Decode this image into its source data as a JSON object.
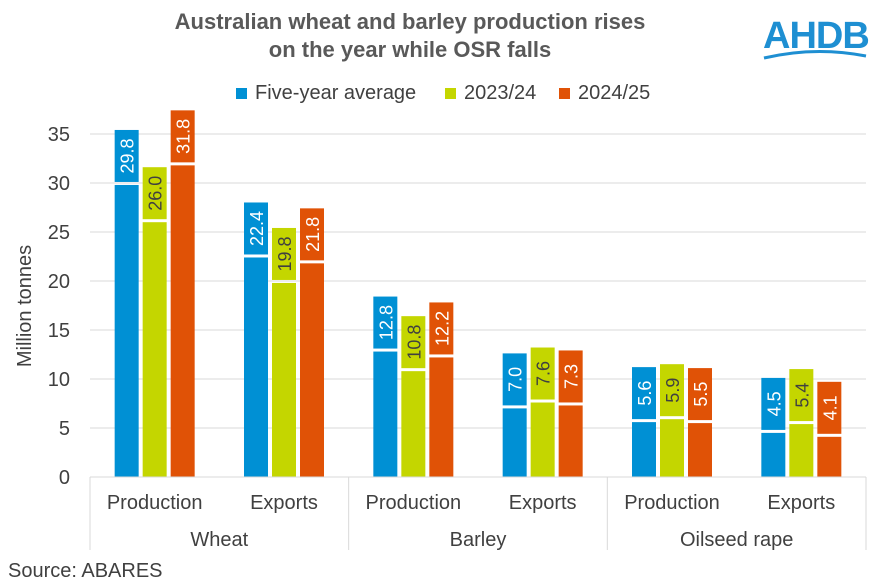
{
  "header": {
    "title_line1": "Australian wheat and barley production rises",
    "title_line2": "on the year while OSR falls",
    "logo_text": "AHDB"
  },
  "source": "Source: ABARES",
  "colors": {
    "five_year_average": "#0090D4",
    "y2023_24": "#C4D600",
    "y2024_25": "#E05206",
    "logo": "#1E8FD2",
    "grid": "#D9D9D9",
    "axis_text": "#404040"
  },
  "chart_data": {
    "type": "bar",
    "title": "Australian wheat and barley production rises on the year while OSR falls",
    "ylabel": "Million tonnes",
    "ylim": [
      0,
      35
    ],
    "yticks": [
      0,
      5,
      10,
      15,
      20,
      25,
      30,
      35
    ],
    "grid": true,
    "legend_position": "top",
    "groups": [
      {
        "name": "Wheat",
        "categories": [
          "Production",
          "Exports"
        ]
      },
      {
        "name": "Barley",
        "categories": [
          "Production",
          "Exports"
        ]
      },
      {
        "name": "Oilseed rape",
        "categories": [
          "Production",
          "Exports"
        ]
      }
    ],
    "series": [
      {
        "name": "Five-year average",
        "color": "#0090D4",
        "values": [
          29.8,
          22.4,
          12.8,
          7.0,
          5.6,
          4.5
        ]
      },
      {
        "name": "2023/24",
        "color": "#C4D600",
        "values": [
          26.0,
          19.8,
          10.8,
          7.6,
          5.9,
          5.4
        ]
      },
      {
        "name": "2024/25",
        "color": "#E05206",
        "values": [
          31.8,
          21.8,
          12.2,
          7.3,
          5.5,
          4.1
        ]
      }
    ]
  }
}
